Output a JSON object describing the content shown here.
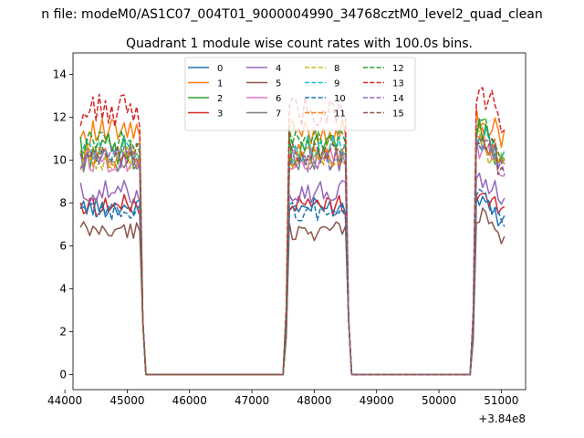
{
  "chart_data": {
    "type": "line",
    "suptitle": "n file: modeM0/AS1C07_004T01_9000004990_34768cztM0_level2_quad_clean",
    "title": "Quadrant 1 module wise count rates with 100.0s bins.",
    "xlabel": "",
    "ylabel": "",
    "x_offset_label": "+3.84e8",
    "xlim": [
      44130,
      51390
    ],
    "ylim": [
      -0.7,
      15.0
    ],
    "xticks": [
      44000,
      45000,
      46000,
      47000,
      48000,
      49000,
      50000,
      51000
    ],
    "yticks": [
      0,
      2,
      4,
      6,
      8,
      10,
      12,
      14
    ],
    "legend_position": "upper-center",
    "legend_columns": 4,
    "segments": [
      {
        "start": 44250,
        "step": 50,
        "n": 20,
        "tail": [
          2.5,
          0
        ]
      },
      {
        "start": 47600,
        "step": 50,
        "n": 19,
        "head": [
          0,
          2.6
        ],
        "tail": [
          2.6,
          0
        ]
      },
      {
        "start": 50600,
        "step": 50,
        "n": 10,
        "head": [
          0,
          2.4
        ]
      }
    ],
    "series": [
      {
        "name": "0",
        "color": "#1f77b4",
        "dash": false,
        "base": 7.8,
        "amp": 0.45
      },
      {
        "name": "1",
        "color": "#ff7f0e",
        "dash": false,
        "base": 11.3,
        "amp": 0.65
      },
      {
        "name": "2",
        "color": "#2ca02c",
        "dash": false,
        "base": 10.4,
        "amp": 0.85
      },
      {
        "name": "3",
        "color": "#d62728",
        "dash": false,
        "base": 7.9,
        "amp": 0.5
      },
      {
        "name": "4",
        "color": "#9467bd",
        "dash": false,
        "base": 8.5,
        "amp": 0.55
      },
      {
        "name": "5",
        "color": "#8c564b",
        "dash": false,
        "base": 6.7,
        "amp": 0.45
      },
      {
        "name": "6",
        "color": "#e377c2",
        "dash": false,
        "base": 10.0,
        "amp": 0.6
      },
      {
        "name": "7",
        "color": "#7f7f7f",
        "dash": false,
        "base": 10.0,
        "amp": 0.55
      },
      {
        "name": "8",
        "color": "#bcbd22",
        "dash": true,
        "base": 10.1,
        "amp": 0.6
      },
      {
        "name": "9",
        "color": "#17becf",
        "dash": true,
        "base": 10.5,
        "amp": 0.65
      },
      {
        "name": "10",
        "color": "#1f77b4",
        "dash": true,
        "base": 7.6,
        "amp": 0.45
      },
      {
        "name": "11",
        "color": "#ff7f0e",
        "dash": true,
        "base": 10.2,
        "amp": 0.6
      },
      {
        "name": "12",
        "color": "#2ca02c",
        "dash": true,
        "base": 10.9,
        "amp": 0.6
      },
      {
        "name": "13",
        "color": "#d62728",
        "dash": true,
        "base": 12.3,
        "amp": 0.8
      },
      {
        "name": "14",
        "color": "#9467bd",
        "dash": true,
        "base": 10.0,
        "amp": 0.65
      },
      {
        "name": "15",
        "color": "#8c564b",
        "dash": true,
        "base": 10.3,
        "amp": 0.55
      }
    ]
  }
}
